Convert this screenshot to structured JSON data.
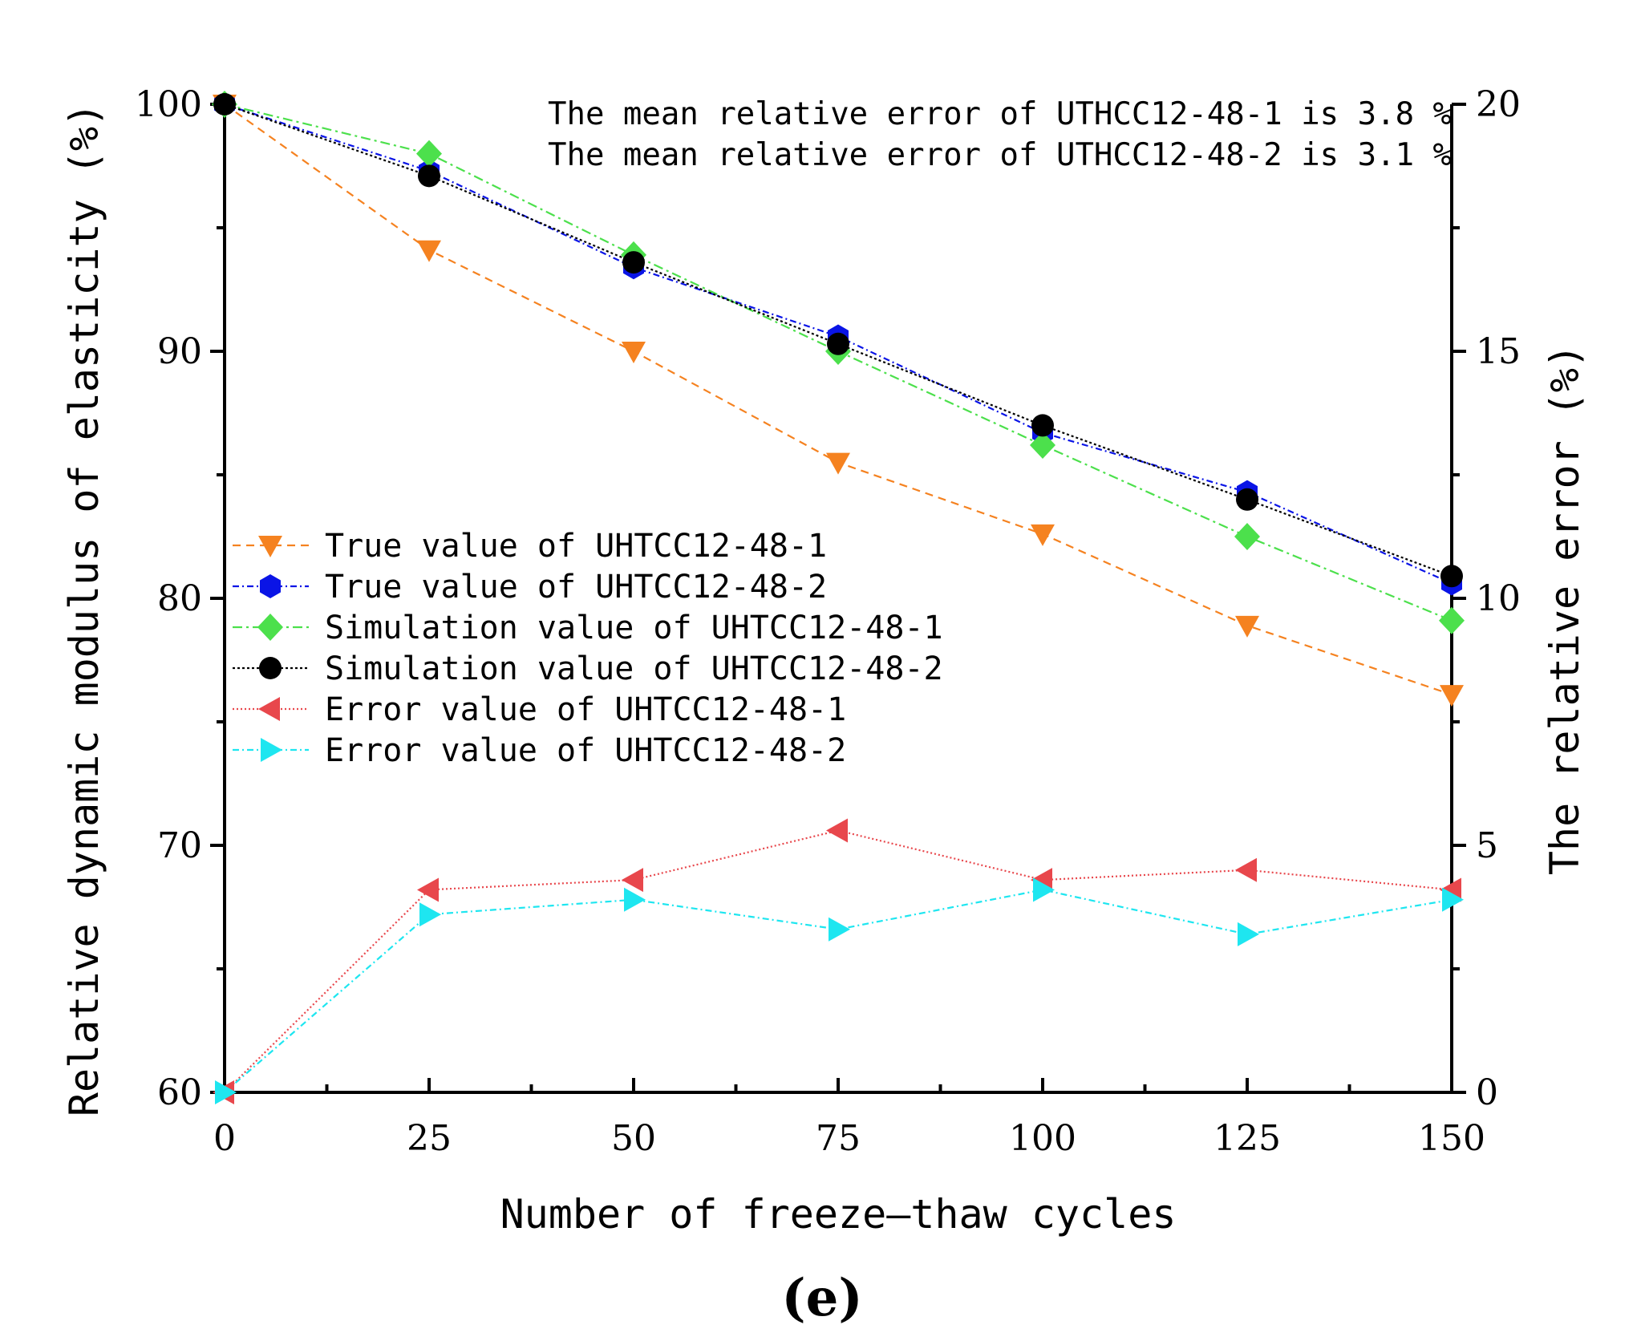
{
  "chart_data": {
    "type": "line",
    "caption": "(e)",
    "xlabel": "Number of freeze–thaw cycles",
    "ylabel": "Relative dynamic modulus of elasticity (%)",
    "y2label": "The relative error (%)",
    "xlim": [
      0,
      150
    ],
    "ylim": [
      60,
      100
    ],
    "y2lim": [
      0,
      20
    ],
    "xticks": [
      "0",
      "25",
      "50",
      "75",
      "100",
      "125",
      "150"
    ],
    "yticks": [
      "60",
      "70",
      "80",
      "90",
      "100"
    ],
    "y2ticks": [
      "0",
      "5",
      "10",
      "15",
      "20"
    ],
    "annotations": [
      "The mean relative error of UTHCC12-48-1 is 3.8 %",
      "The mean relative error of UTHCC12-48-2 is 3.1 %"
    ],
    "x": [
      0,
      25,
      50,
      75,
      100,
      125,
      150
    ],
    "series": [
      {
        "name": "True value of UHTCC12-48-1",
        "axis": "left",
        "marker": "triangle-down",
        "color": "#F58220",
        "dash": "10,7",
        "values": [
          100,
          94.1,
          90.0,
          85.5,
          82.6,
          78.9,
          76.1
        ]
      },
      {
        "name": "True value of UHTCC12-48-2",
        "axis": "left",
        "marker": "hexagon",
        "color": "#0A14E6",
        "dash": "8,4,2,4",
        "values": [
          100,
          97.3,
          93.4,
          90.6,
          86.7,
          84.3,
          80.6
        ]
      },
      {
        "name": "Simulation value of UHTCC12-48-1",
        "axis": "left",
        "marker": "diamond",
        "color": "#4CE04C",
        "dash": "12,5,3,5",
        "values": [
          100,
          98.0,
          93.9,
          90.0,
          86.2,
          82.5,
          79.1
        ]
      },
      {
        "name": "Simulation value of UHTCC12-48-2",
        "axis": "left",
        "marker": "circle",
        "color": "#000000",
        "dash": "3,3",
        "values": [
          100,
          97.1,
          93.6,
          90.3,
          87.0,
          84.0,
          80.9
        ]
      },
      {
        "name": "Error value of UHTCC12-48-1",
        "axis": "right",
        "marker": "triangle-left",
        "color": "#E8474C",
        "dash": "2,3",
        "values": [
          0,
          4.1,
          4.3,
          5.3,
          4.3,
          4.5,
          4.1
        ]
      },
      {
        "name": "Error value of UHTCC12-48-2",
        "axis": "right",
        "marker": "triangle-right",
        "color": "#1EE6F0",
        "dash": "8,4,2,4",
        "values": [
          0,
          3.6,
          3.9,
          3.3,
          4.1,
          3.2,
          3.9
        ]
      }
    ]
  }
}
